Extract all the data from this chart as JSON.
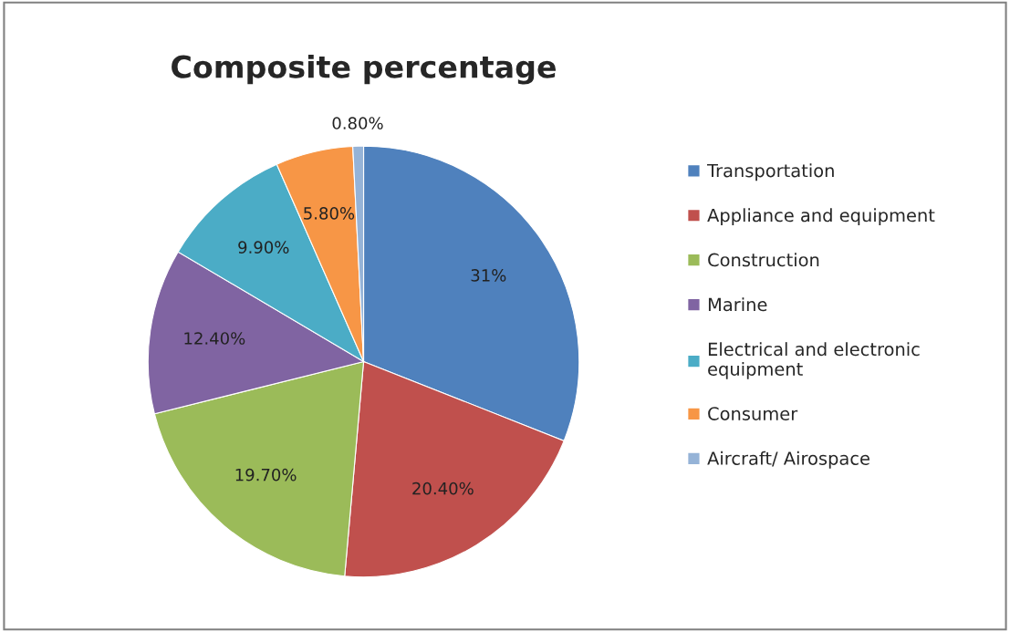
{
  "chart_data": {
    "type": "pie",
    "title": "Composite percentage",
    "categories": [
      "Transportation",
      "Appliance and equipment",
      "Construction",
      "Marine",
      "Electrical and electronic\nequipment",
      "Consumer",
      "Aircraft/ Airospace"
    ],
    "values": [
      31,
      20.4,
      19.7,
      12.4,
      9.9,
      5.8,
      0.8
    ],
    "value_labels": [
      "31%",
      "20.40%",
      "19.70%",
      "12.40%",
      "9.90%",
      "5.80%",
      "0.80%"
    ],
    "colors": [
      "#4f81bd",
      "#c0504d",
      "#9bbb59",
      "#8064a2",
      "#4bacc6",
      "#f79646",
      "#95b3d7"
    ],
    "legend": "right"
  }
}
